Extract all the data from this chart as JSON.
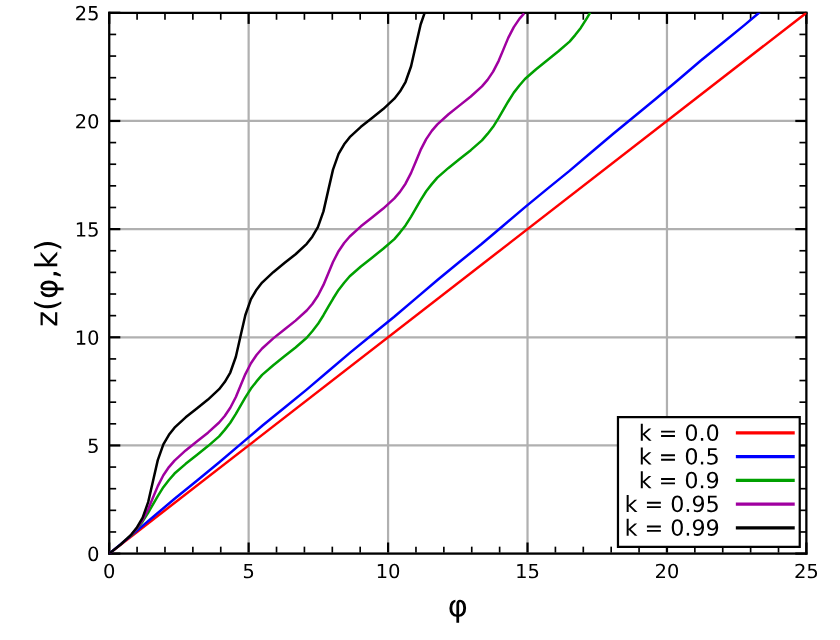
{
  "chart_data": {
    "type": "line",
    "xlabel": "φ",
    "ylabel": "z(φ,k)",
    "xlim": [
      0,
      25
    ],
    "ylim": [
      0,
      25
    ],
    "xticks": [
      0,
      5,
      10,
      15,
      20,
      25
    ],
    "yticks": [
      0,
      5,
      10,
      15,
      20,
      25
    ],
    "grid": true,
    "legend": "bottom right",
    "line_style": "solid",
    "marker": "none",
    "series": [
      {
        "name": "k = 0.0",
        "color": "#ff0000",
        "x": [
          0,
          25
        ],
        "values": [
          0,
          25
        ]
      },
      {
        "name": "k = 0.5",
        "color": "#0000ff",
        "x": [
          0,
          0.785,
          1.571,
          2.356,
          3.142,
          3.927,
          4.712,
          5.498,
          6.283,
          7.069,
          7.854,
          8.639,
          9.425,
          10.21,
          10.996,
          11.781,
          12.566,
          13.352,
          14.137,
          14.923,
          15.708,
          16.493,
          17.279,
          18.064,
          18.85,
          19.635,
          20.42,
          21.206,
          21.991,
          22.777,
          23.29
        ],
        "values": [
          0,
          0.83,
          1.69,
          2.55,
          3.37,
          4.2,
          5.06,
          5.92,
          6.74,
          7.57,
          8.43,
          9.29,
          10.12,
          10.94,
          11.8,
          12.66,
          13.49,
          14.31,
          15.17,
          16.03,
          16.86,
          17.68,
          18.54,
          19.4,
          20.23,
          21.06,
          21.92,
          22.78,
          23.6,
          24.43,
          24.99
        ]
      },
      {
        "name": "k = 0.9",
        "color": "#00a000",
        "x": [
          0.8,
          1.0,
          1.2,
          1.4,
          1.571,
          1.742,
          1.942,
          2.142,
          2.342,
          2.742,
          3.142,
          3.542,
          3.942,
          4.142,
          4.342,
          4.542,
          4.712,
          4.883,
          5.083,
          5.283,
          5.483,
          5.883,
          6.283,
          6.683,
          7.083,
          7.283,
          7.483,
          7.683,
          7.854,
          8.025,
          8.225,
          8.425,
          8.625,
          9.025,
          9.425,
          9.825,
          10.225,
          10.425,
          10.625,
          10.825,
          10.996,
          11.167,
          11.367,
          11.567,
          11.767,
          12.167,
          12.566,
          12.966,
          13.366,
          13.566,
          13.766,
          13.966,
          14.137,
          14.308,
          14.508,
          14.708,
          14.908,
          15.308,
          15.708,
          16.108,
          16.508,
          16.708,
          16.908,
          17.108,
          17.23
        ],
        "values": [
          0.86,
          1.16,
          1.49,
          1.9,
          2.28,
          2.66,
          3.07,
          3.4,
          3.7,
          4.15,
          4.56,
          4.97,
          5.42,
          5.72,
          6.05,
          6.46,
          6.84,
          7.22,
          7.63,
          7.96,
          8.26,
          8.71,
          9.12,
          9.53,
          9.98,
          10.28,
          10.61,
          11.02,
          11.4,
          11.78,
          12.19,
          12.52,
          12.82,
          13.27,
          13.68,
          14.09,
          14.54,
          14.84,
          15.17,
          15.58,
          15.96,
          16.34,
          16.75,
          17.08,
          17.38,
          17.83,
          18.24,
          18.65,
          19.1,
          19.4,
          19.73,
          20.14,
          20.52,
          20.9,
          21.31,
          21.64,
          21.94,
          22.39,
          22.81,
          23.22,
          23.67,
          23.97,
          24.3,
          24.71,
          24.97
        ]
      },
      {
        "name": "k = 0.95",
        "color": "#a000a0",
        "x": [
          0.8,
          1.0,
          1.2,
          1.4,
          1.571,
          1.742,
          1.942,
          2.142,
          2.342,
          2.742,
          3.142,
          3.542,
          3.942,
          4.142,
          4.342,
          4.542,
          4.712,
          4.883,
          5.083,
          5.283,
          5.483,
          5.883,
          6.283,
          6.683,
          7.083,
          7.283,
          7.483,
          7.683,
          7.854,
          8.025,
          8.225,
          8.425,
          8.625,
          9.025,
          9.425,
          9.825,
          10.225,
          10.425,
          10.625,
          10.825,
          10.996,
          11.167,
          11.367,
          11.567,
          11.767,
          12.167,
          12.566,
          12.966,
          13.366,
          13.566,
          13.766,
          13.966,
          14.137,
          14.308,
          14.508,
          14.708,
          14.85
        ],
        "values": [
          0.88,
          1.18,
          1.56,
          2.06,
          2.59,
          3.12,
          3.62,
          4.0,
          4.3,
          4.77,
          5.18,
          5.59,
          6.06,
          6.36,
          6.74,
          7.24,
          7.77,
          8.3,
          8.8,
          9.18,
          9.48,
          9.95,
          10.36,
          10.77,
          11.24,
          11.54,
          11.92,
          12.42,
          12.95,
          13.48,
          13.98,
          14.36,
          14.66,
          15.13,
          15.54,
          15.95,
          16.42,
          16.72,
          17.1,
          17.6,
          18.13,
          18.66,
          19.16,
          19.54,
          19.84,
          20.31,
          20.72,
          21.13,
          21.6,
          21.9,
          22.28,
          22.78,
          23.31,
          23.84,
          24.34,
          24.72,
          24.93
        ]
      },
      {
        "name": "k = 0.99",
        "color": "#000000",
        "x": [
          0,
          0.4,
          0.8,
          1.0,
          1.2,
          1.4,
          1.571,
          1.742,
          1.942,
          2.142,
          2.342,
          2.742,
          3.142,
          3.542,
          3.942,
          4.142,
          4.342,
          4.542,
          4.712,
          4.883,
          5.083,
          5.283,
          5.483,
          5.883,
          6.283,
          6.683,
          7.083,
          7.283,
          7.483,
          7.683,
          7.854,
          8.025,
          8.225,
          8.425,
          8.625,
          9.025,
          9.425,
          9.825,
          10.225,
          10.425,
          10.625,
          10.825,
          10.996,
          11.167,
          11.3
        ],
        "values": [
          0,
          0.41,
          0.89,
          1.22,
          1.66,
          2.39,
          3.36,
          4.32,
          5.05,
          5.49,
          5.82,
          6.3,
          6.71,
          7.12,
          7.6,
          7.93,
          8.37,
          9.1,
          10.07,
          11.03,
          11.76,
          12.2,
          12.53,
          13.01,
          13.43,
          13.84,
          14.32,
          14.65,
          15.09,
          15.82,
          16.79,
          17.75,
          18.48,
          18.92,
          19.25,
          19.73,
          20.14,
          20.55,
          21.03,
          21.36,
          21.8,
          22.53,
          23.5,
          24.46,
          24.95
        ]
      }
    ]
  }
}
